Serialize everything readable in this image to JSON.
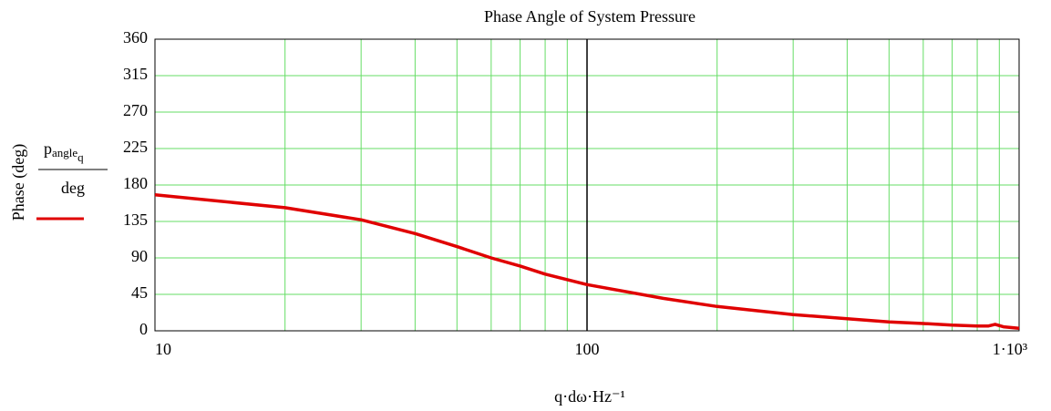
{
  "chart_data": {
    "type": "line",
    "title": "Phase Angle of System Pressure",
    "ylabel": "Phase (deg)",
    "xlabel": "q·dω·Hz⁻¹",
    "legend_numerator": {
      "base": "p",
      "sub": "angle",
      "subsub": "q"
    },
    "legend_denominator": "deg",
    "xscale": "log",
    "xlim": [
      10,
      1000
    ],
    "xticks": [
      10,
      100,
      {
        "value": 1000,
        "label": "1·10³"
      }
    ],
    "xminorticks": [
      20,
      30,
      40,
      50,
      60,
      70,
      80,
      90,
      200,
      300,
      400,
      500,
      600,
      700,
      800,
      900
    ],
    "xmarker": 100,
    "ylim": [
      0,
      360
    ],
    "yticks": [
      0,
      45,
      90,
      135,
      180,
      225,
      270,
      315,
      360
    ],
    "grid": true,
    "grid_color": "#66dd66",
    "x": [
      10,
      20,
      30,
      40,
      50,
      60,
      70,
      80,
      100,
      150,
      200,
      300,
      400,
      500,
      600,
      700,
      800,
      850,
      880,
      920,
      1000
    ],
    "series": [
      {
        "color": "#e00000",
        "values": [
          168,
          152,
          137,
          120,
          104,
          90,
          80,
          70,
          57,
          40,
          30,
          20,
          15,
          11,
          9,
          7,
          6,
          6,
          8,
          5,
          3
        ]
      }
    ]
  }
}
